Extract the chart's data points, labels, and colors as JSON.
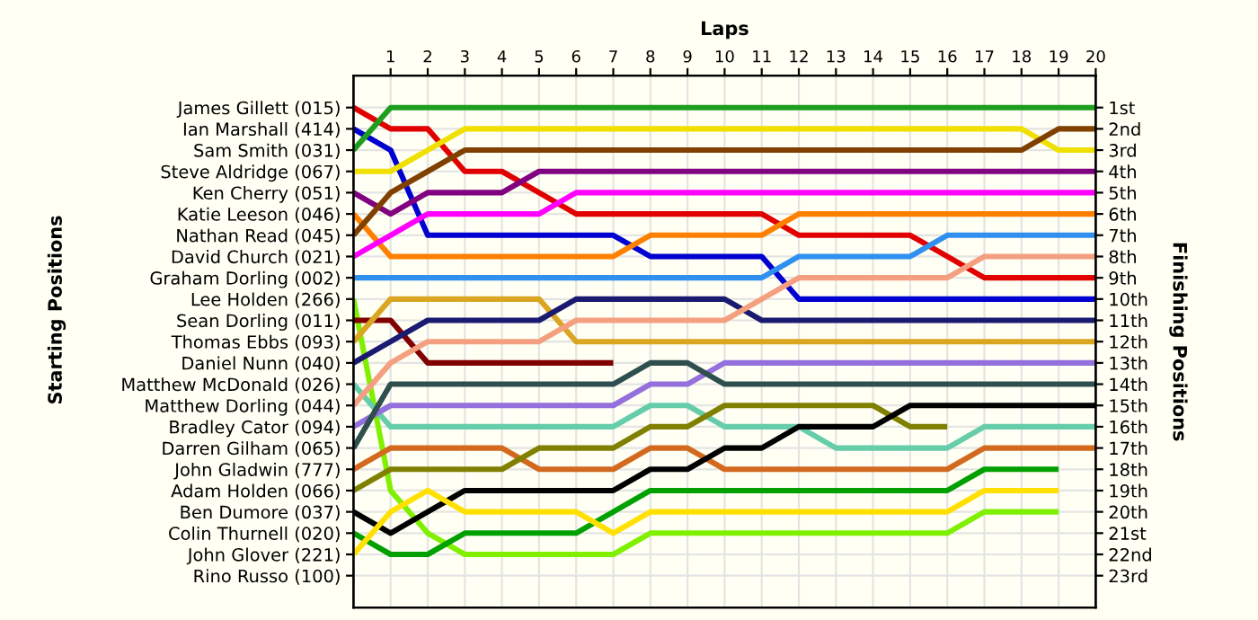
{
  "chart_data": {
    "type": "line",
    "xlabel": "Laps",
    "ylabel": "Finishing Positions",
    "annotations": [
      "Starting Positions"
    ],
    "x": [
      0,
      1,
      2,
      3,
      4,
      5,
      6,
      7,
      8,
      9,
      10,
      11,
      12,
      13,
      14,
      15,
      16,
      17,
      18,
      19,
      20
    ],
    "xlim": [
      0,
      20
    ],
    "xticks": [
      1,
      2,
      3,
      4,
      5,
      6,
      7,
      8,
      9,
      10,
      11,
      12,
      13,
      14,
      15,
      16,
      17,
      18,
      19,
      20
    ],
    "ylim": [
      24.5,
      -0.5
    ],
    "y_categories": [
      "James Gillett (015)",
      "Ian Marshall (414)",
      "Sam Smith (031)",
      "Steve Aldridge (067)",
      "Ken Cherry (051)",
      "Katie Leeson (046)",
      "Nathan Read (045)",
      "David Church (021)",
      "Graham Dorling (002)",
      "Lee Holden (266)",
      "Sean Dorling (011)",
      "Thomas Ebbs (093)",
      "Daniel Nunn (040)",
      "Matthew McDonald (026)",
      "Matthew Dorling (044)",
      "Bradley Cator (094)",
      "Darren Gilham (065)",
      "John Gladwin (777)",
      "Adam Holden (066)",
      "Ben Dumore (037)",
      "Colin Thurnell (020)",
      "John Glover (221)",
      "Rino Russo (100)"
    ],
    "yticks": [
      {
        "value": 1,
        "label": "1st"
      },
      {
        "value": 2,
        "label": "2nd"
      },
      {
        "value": 3,
        "label": "3rd"
      },
      {
        "value": 4,
        "label": "4th"
      },
      {
        "value": 5,
        "label": "5th"
      },
      {
        "value": 6,
        "label": "6th"
      },
      {
        "value": 7,
        "label": "7th"
      },
      {
        "value": 8,
        "label": "8th"
      },
      {
        "value": 9,
        "label": "9th"
      },
      {
        "value": 10,
        "label": "10th"
      },
      {
        "value": 11,
        "label": "11th"
      },
      {
        "value": 12,
        "label": "12th"
      },
      {
        "value": 13,
        "label": "13th"
      },
      {
        "value": 14,
        "label": "14th"
      },
      {
        "value": 15,
        "label": "15th"
      },
      {
        "value": 16,
        "label": "16th"
      },
      {
        "value": 17,
        "label": "17th"
      },
      {
        "value": 18,
        "label": "18th"
      },
      {
        "value": 19,
        "label": "19th"
      },
      {
        "value": 20,
        "label": "20th"
      },
      {
        "value": 21,
        "label": "21st"
      },
      {
        "value": 22,
        "label": "22nd"
      },
      {
        "value": 23,
        "label": "23rd"
      }
    ],
    "grid": true,
    "marker": "none",
    "line_style": "solid",
    "series": [
      {
        "color": "#e00000",
        "values": [
          1,
          2,
          2,
          4,
          4,
          5,
          6,
          6,
          6,
          6,
          6,
          6,
          7,
          7,
          7,
          7,
          8,
          9,
          9,
          9,
          9
        ]
      },
      {
        "color": "#0000d0",
        "values": [
          2,
          3,
          7,
          7,
          7,
          7,
          7,
          7,
          8,
          8,
          8,
          8,
          10,
          10,
          10,
          10,
          10,
          10,
          10,
          10,
          10
        ]
      },
      {
        "color": "#1e9e1e",
        "values": [
          3,
          1,
          1,
          1,
          1,
          1,
          1,
          1,
          1,
          1,
          1,
          1,
          1,
          1,
          1,
          1,
          1,
          1,
          1,
          1,
          1
        ]
      },
      {
        "color": "#f0e000",
        "values": [
          4,
          4,
          3,
          2,
          2,
          2,
          2,
          2,
          2,
          2,
          2,
          2,
          2,
          2,
          2,
          2,
          2,
          2,
          2,
          3,
          3
        ]
      },
      {
        "color": "#800080",
        "values": [
          5,
          6,
          5,
          5,
          5,
          4,
          4,
          4,
          4,
          4,
          4,
          4,
          4,
          4,
          4,
          4,
          4,
          4,
          4,
          4,
          4
        ]
      },
      {
        "color": "#ff8000",
        "values": [
          6,
          8,
          8,
          8,
          8,
          8,
          8,
          8,
          7,
          7,
          7,
          7,
          6,
          6,
          6,
          6,
          6,
          6,
          6,
          6,
          6
        ]
      },
      {
        "color": "#804000",
        "values": [
          7,
          5,
          4,
          3,
          3,
          3,
          3,
          3,
          3,
          3,
          3,
          3,
          3,
          3,
          3,
          3,
          3,
          3,
          3,
          2,
          2
        ]
      },
      {
        "color": "#ff00ff",
        "values": [
          8,
          7,
          6,
          6,
          6,
          6,
          5,
          5,
          5,
          5,
          5,
          5,
          5,
          5,
          5,
          5,
          5,
          5,
          5,
          5,
          5
        ]
      },
      {
        "color": "#3090f0",
        "values": [
          9,
          9,
          9,
          9,
          9,
          9,
          9,
          9,
          9,
          9,
          9,
          9,
          8,
          8,
          8,
          8,
          7,
          7,
          7,
          7,
          7
        ]
      },
      {
        "color": "#80f000",
        "values": [
          10,
          19,
          21,
          22,
          22,
          22,
          22,
          22,
          21,
          21,
          21,
          21,
          21,
          21,
          21,
          21,
          21,
          20,
          20,
          20,
          null
        ]
      },
      {
        "color": "#800000",
        "values": [
          11,
          11,
          13,
          13,
          13,
          13,
          13,
          13,
          null,
          null,
          null,
          null,
          null,
          null,
          null,
          null,
          null,
          null,
          null,
          null,
          null
        ]
      },
      {
        "color": "#daa520",
        "values": [
          12,
          10,
          10,
          10,
          10,
          10,
          12,
          12,
          12,
          12,
          12,
          12,
          12,
          12,
          12,
          12,
          12,
          12,
          12,
          12,
          12
        ]
      },
      {
        "color": "#1a1a70",
        "values": [
          13,
          12,
          11,
          11,
          11,
          11,
          10,
          10,
          10,
          10,
          10,
          11,
          11,
          11,
          11,
          11,
          11,
          11,
          11,
          11,
          11
        ]
      },
      {
        "color": "#66cdaa",
        "values": [
          14,
          16,
          16,
          16,
          16,
          16,
          16,
          16,
          15,
          15,
          16,
          16,
          16,
          17,
          17,
          17,
          17,
          16,
          16,
          16,
          16
        ]
      },
      {
        "color": "#f4a080",
        "values": [
          15,
          13,
          12,
          12,
          12,
          12,
          11,
          11,
          11,
          11,
          11,
          10,
          9,
          9,
          9,
          9,
          9,
          8,
          8,
          8,
          8
        ]
      },
      {
        "color": "#9370db",
        "values": [
          16,
          15,
          15,
          15,
          15,
          15,
          15,
          15,
          14,
          14,
          13,
          13,
          13,
          13,
          13,
          13,
          13,
          13,
          13,
          13,
          13
        ]
      },
      {
        "color": "#2f4f4f",
        "values": [
          17,
          14,
          14,
          14,
          14,
          14,
          14,
          14,
          13,
          13,
          14,
          14,
          14,
          14,
          14,
          14,
          14,
          14,
          14,
          14,
          14
        ]
      },
      {
        "color": "#d2691e",
        "values": [
          18,
          17,
          17,
          17,
          17,
          18,
          18,
          18,
          17,
          17,
          18,
          18,
          18,
          18,
          18,
          18,
          18,
          17,
          17,
          17,
          17
        ]
      },
      {
        "color": "#808000",
        "values": [
          19,
          18,
          18,
          18,
          18,
          17,
          17,
          17,
          16,
          16,
          15,
          15,
          15,
          15,
          15,
          16,
          16,
          null,
          null,
          null,
          null
        ]
      },
      {
        "color": "#000000",
        "values": [
          20,
          21,
          20,
          19,
          19,
          19,
          19,
          19,
          18,
          18,
          17,
          17,
          16,
          16,
          16,
          15,
          15,
          15,
          15,
          15,
          15
        ]
      },
      {
        "color": "#00a000",
        "values": [
          21,
          22,
          22,
          21,
          21,
          21,
          21,
          20,
          19,
          19,
          19,
          19,
          19,
          19,
          19,
          19,
          19,
          18,
          18,
          18,
          null
        ]
      },
      {
        "color": "#ffe000",
        "values": [
          22,
          20,
          19,
          20,
          20,
          20,
          20,
          21,
          20,
          20,
          20,
          20,
          20,
          20,
          20,
          20,
          20,
          19,
          19,
          19,
          null
        ]
      }
    ]
  }
}
